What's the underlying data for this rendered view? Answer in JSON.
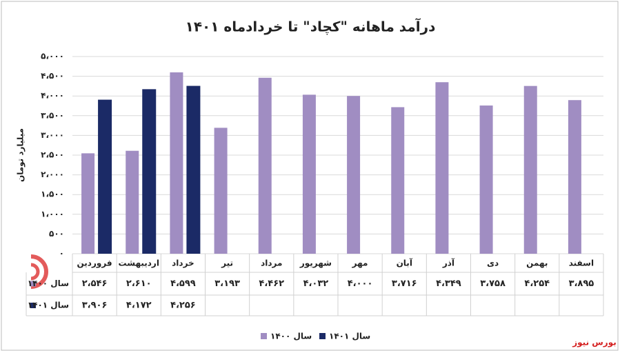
{
  "chart_data": {
    "type": "bar",
    "title": "درآمد ماهانه \"کچاد\" تا خردادماه ۱۴۰۱",
    "y_label": "میلیارد تومان",
    "source": "بورس نیوز",
    "categories": [
      "فروردین",
      "اردیبهشت",
      "خرداد",
      "تیر",
      "مرداد",
      "شهریور",
      "مهر",
      "آبان",
      "آذر",
      "دی",
      "بهمن",
      "اسفند"
    ],
    "series": [
      {
        "name": "سال ۱۴۰۰",
        "color": "#a08dc2",
        "values": [
          2546,
          2610,
          4599,
          3193,
          4462,
          4032,
          4000,
          3716,
          4349,
          3758,
          4254,
          3895
        ],
        "value_labels": [
          "۲،۵۴۶",
          "۲،۶۱۰",
          "۴،۵۹۹",
          "۳،۱۹۳",
          "۴،۴۶۲",
          "۴،۰۳۲",
          "۴،۰۰۰",
          "۳،۷۱۶",
          "۴،۳۴۹",
          "۳،۷۵۸",
          "۴،۲۵۴",
          "۳،۸۹۵"
        ]
      },
      {
        "name": "سال ۱۴۰۱",
        "color": "#1b2a66",
        "values": [
          3906,
          4172,
          4256,
          null,
          null,
          null,
          null,
          null,
          null,
          null,
          null,
          null
        ],
        "value_labels": [
          "۳،۹۰۶",
          "۴،۱۷۲",
          "۴،۲۵۶",
          null,
          null,
          null,
          null,
          null,
          null,
          null,
          null,
          null
        ]
      }
    ],
    "ylim": [
      0,
      5000
    ],
    "yticks": [
      {
        "value": 0,
        "label": "۰"
      },
      {
        "value": 500,
        "label": "۵۰۰"
      },
      {
        "value": 1000,
        "label": "۱،۰۰۰"
      },
      {
        "value": 1500,
        "label": "۱،۵۰۰"
      },
      {
        "value": 2000,
        "label": "۲،۰۰۰"
      },
      {
        "value": 2500,
        "label": "۲،۵۰۰"
      },
      {
        "value": 3000,
        "label": "۳،۰۰۰"
      },
      {
        "value": 3500,
        "label": "۳،۵۰۰"
      },
      {
        "value": 4000,
        "label": "۴،۰۰۰"
      },
      {
        "value": 4500,
        "label": "۴،۵۰۰"
      },
      {
        "value": 5000,
        "label": "۵،۰۰۰"
      }
    ],
    "grid": true
  }
}
